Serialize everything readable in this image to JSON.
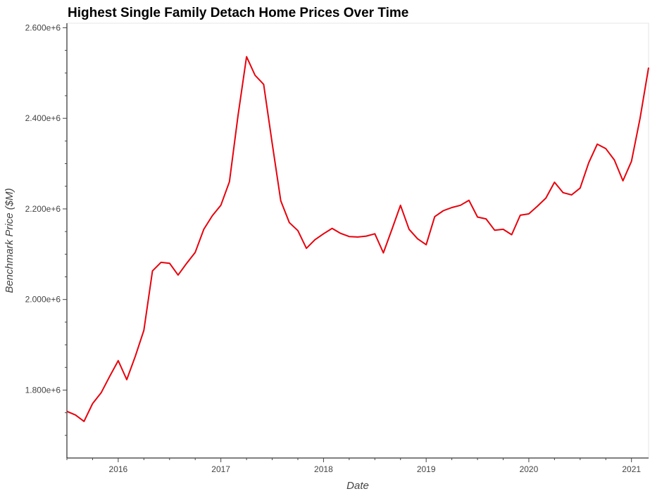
{
  "chart_data": {
    "type": "line",
    "title": "Highest Single Family Detach Home Prices Over Time",
    "xlabel": "Date",
    "ylabel": "Benchmark Price ($M)",
    "x_tick_labels": [
      "2016",
      "2017",
      "2018",
      "2019",
      "2020",
      "2021"
    ],
    "y_tick_labels": [
      "1.800e+6",
      "2.000e+6",
      "2.200e+6",
      "2.400e+6",
      "2.600e+6"
    ],
    "xlim": [
      "2015-07",
      "2021-03"
    ],
    "ylim": [
      1650000,
      2610000
    ],
    "grid": false,
    "legend": "none",
    "series": [
      {
        "color": "#e8000b",
        "x": [
          "2015-07",
          "2015-08",
          "2015-09",
          "2015-10",
          "2015-11",
          "2015-12",
          "2016-01",
          "2016-02",
          "2016-03",
          "2016-04",
          "2016-05",
          "2016-06",
          "2016-07",
          "2016-08",
          "2016-09",
          "2016-10",
          "2016-11",
          "2016-12",
          "2017-01",
          "2017-02",
          "2017-03",
          "2017-04",
          "2017-05",
          "2017-06",
          "2017-07",
          "2017-08",
          "2017-09",
          "2017-10",
          "2017-11",
          "2017-12",
          "2018-01",
          "2018-02",
          "2018-03",
          "2018-04",
          "2018-05",
          "2018-06",
          "2018-07",
          "2018-08",
          "2018-09",
          "2018-10",
          "2018-11",
          "2018-12",
          "2019-01",
          "2019-02",
          "2019-03",
          "2019-04",
          "2019-05",
          "2019-06",
          "2019-07",
          "2019-08",
          "2019-09",
          "2019-10",
          "2019-11",
          "2019-12",
          "2020-01",
          "2020-02",
          "2020-03",
          "2020-04",
          "2020-05",
          "2020-06",
          "2020-07",
          "2020-08",
          "2020-09",
          "2020-10",
          "2020-11",
          "2020-12",
          "2021-01",
          "2021-02",
          "2021-03"
        ],
        "values": [
          1753000,
          1745000,
          1731000,
          1770000,
          1794000,
          1830000,
          1865000,
          1823000,
          1875000,
          1932000,
          2063000,
          2082000,
          2080000,
          2054000,
          2080000,
          2104000,
          2155000,
          2185000,
          2208000,
          2260000,
          2405000,
          2536000,
          2495000,
          2475000,
          2345000,
          2218000,
          2170000,
          2152000,
          2113000,
          2132000,
          2145000,
          2157000,
          2146000,
          2139000,
          2138000,
          2140000,
          2145000,
          2103000,
          2155000,
          2208000,
          2155000,
          2134000,
          2121000,
          2183000,
          2196000,
          2203000,
          2208000,
          2219000,
          2182000,
          2178000,
          2153000,
          2155000,
          2143000,
          2186000,
          2189000,
          2206000,
          2224000,
          2259000,
          2236000,
          2231000,
          2246000,
          2302000,
          2343000,
          2333000,
          2308000,
          2262000,
          2305000,
          2400000,
          2512000
        ]
      }
    ]
  }
}
